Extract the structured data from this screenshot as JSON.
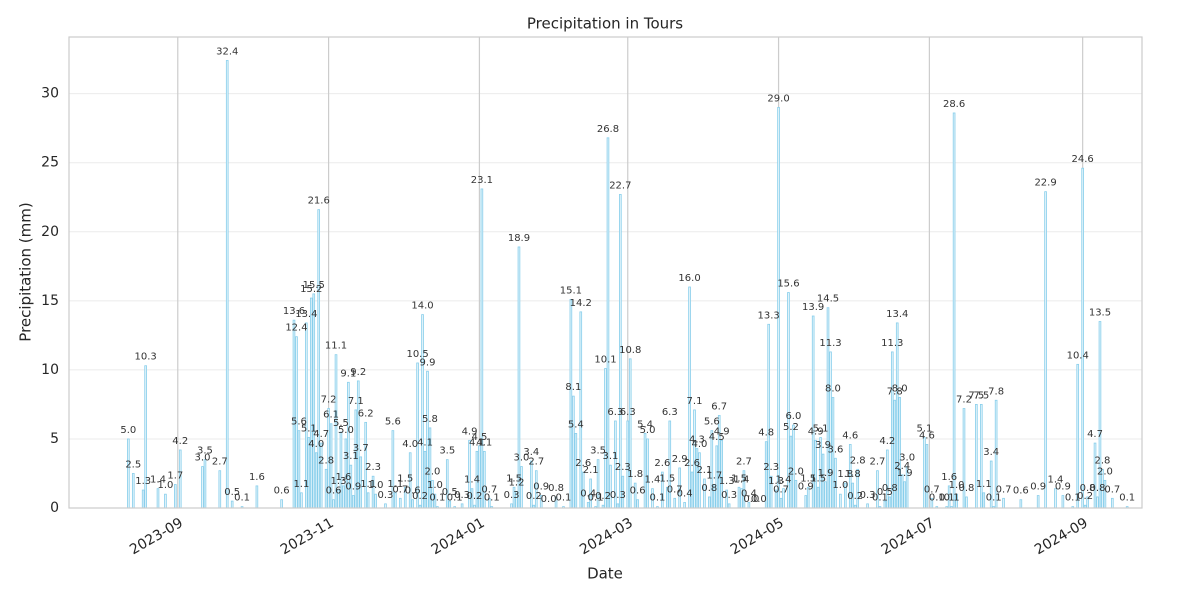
{
  "chart_data": {
    "type": "bar",
    "title": "Precipitation in Tours",
    "xlabel": "Date",
    "ylabel": "Precipitation (mm)",
    "color": "#87ceeb",
    "grid": true,
    "xlim": [
      "2023-07-19",
      "2024-09-25"
    ],
    "xticks": [
      {
        "value": "2023-09-01",
        "label": "2023-09"
      },
      {
        "value": "2023-11-01",
        "label": "2023-11"
      },
      {
        "value": "2024-01-01",
        "label": "2024-01"
      },
      {
        "value": "2024-03-01",
        "label": "2024-03"
      },
      {
        "value": "2024-05-01",
        "label": "2024-05"
      },
      {
        "value": "2024-07-01",
        "label": "2024-07"
      },
      {
        "value": "2024-09-01",
        "label": "2024-09"
      }
    ],
    "ylim": [
      0,
      34.1
    ],
    "yticks": [
      0,
      5,
      10,
      15,
      20,
      25,
      30
    ],
    "x": [
      "2023-08-12",
      "2023-08-14",
      "2023-08-18",
      "2023-08-19",
      "2023-08-24",
      "2023-08-27",
      "2023-08-31",
      "2023-09-02",
      "2023-09-11",
      "2023-09-12",
      "2023-09-18",
      "2023-09-21",
      "2023-09-23",
      "2023-09-27",
      "2023-10-03",
      "2023-10-13",
      "2023-10-18",
      "2023-10-19",
      "2023-10-20",
      "2023-10-21",
      "2023-10-23",
      "2023-10-24",
      "2023-10-25",
      "2023-10-26",
      "2023-10-27",
      "2023-10-28",
      "2023-10-29",
      "2023-10-31",
      "2023-11-01",
      "2023-11-02",
      "2023-11-03",
      "2023-11-04",
      "2023-11-05",
      "2023-11-06",
      "2023-11-07",
      "2023-11-08",
      "2023-11-09",
      "2023-11-10",
      "2023-11-11",
      "2023-11-12",
      "2023-11-13",
      "2023-11-14",
      "2023-11-16",
      "2023-11-17",
      "2023-11-19",
      "2023-11-20",
      "2023-11-24",
      "2023-11-27",
      "2023-11-28",
      "2023-11-30",
      "2023-12-02",
      "2023-12-04",
      "2023-12-05",
      "2023-12-07",
      "2023-12-08",
      "2023-12-09",
      "2023-12-10",
      "2023-12-11",
      "2023-12-12",
      "2023-12-13",
      "2023-12-14",
      "2023-12-15",
      "2023-12-19",
      "2023-12-20",
      "2023-12-22",
      "2023-12-25",
      "2023-12-28",
      "2023-12-29",
      "2023-12-30",
      "2023-12-31",
      "2024-01-01",
      "2024-01-02",
      "2024-01-03",
      "2024-01-05",
      "2024-01-06",
      "2024-01-14",
      "2024-01-15",
      "2024-01-16",
      "2024-01-17",
      "2024-01-18",
      "2024-01-22",
      "2024-01-23",
      "2024-01-24",
      "2024-01-26",
      "2024-01-29",
      "2024-02-01",
      "2024-02-04",
      "2024-02-07",
      "2024-02-08",
      "2024-02-09",
      "2024-02-11",
      "2024-02-12",
      "2024-02-14",
      "2024-02-15",
      "2024-02-17",
      "2024-02-18",
      "2024-02-20",
      "2024-02-21",
      "2024-02-22",
      "2024-02-23",
      "2024-02-25",
      "2024-02-26",
      "2024-02-27",
      "2024-02-28",
      "2024-03-01",
      "2024-03-02",
      "2024-03-04",
      "2024-03-05",
      "2024-03-08",
      "2024-03-09",
      "2024-03-11",
      "2024-03-13",
      "2024-03-15",
      "2024-03-17",
      "2024-03-18",
      "2024-03-20",
      "2024-03-22",
      "2024-03-24",
      "2024-03-26",
      "2024-03-27",
      "2024-03-28",
      "2024-03-29",
      "2024-03-30",
      "2024-04-01",
      "2024-04-03",
      "2024-04-04",
      "2024-04-05",
      "2024-04-06",
      "2024-04-07",
      "2024-04-08",
      "2024-04-10",
      "2024-04-11",
      "2024-04-15",
      "2024-04-16",
      "2024-04-17",
      "2024-04-19",
      "2024-04-20",
      "2024-04-23",
      "2024-04-26",
      "2024-04-27",
      "2024-04-28",
      "2024-04-30",
      "2024-05-01",
      "2024-05-02",
      "2024-05-03",
      "2024-05-05",
      "2024-05-06",
      "2024-05-07",
      "2024-05-08",
      "2024-05-12",
      "2024-05-13",
      "2024-05-15",
      "2024-05-16",
      "2024-05-17",
      "2024-05-18",
      "2024-05-19",
      "2024-05-20",
      "2024-05-21",
      "2024-05-22",
      "2024-05-23",
      "2024-05-24",
      "2024-05-26",
      "2024-05-28",
      "2024-05-30",
      "2024-05-31",
      "2024-06-01",
      "2024-06-02",
      "2024-06-06",
      "2024-06-10",
      "2024-06-11",
      "2024-06-13",
      "2024-06-14",
      "2024-06-15",
      "2024-06-16",
      "2024-06-17",
      "2024-06-18",
      "2024-06-19",
      "2024-06-20",
      "2024-06-21",
      "2024-06-22",
      "2024-06-29",
      "2024-06-30",
      "2024-07-02",
      "2024-07-04",
      "2024-07-08",
      "2024-07-09",
      "2024-07-10",
      "2024-07-11",
      "2024-07-12",
      "2024-07-15",
      "2024-07-16",
      "2024-07-20",
      "2024-07-22",
      "2024-07-23",
      "2024-07-26",
      "2024-07-27",
      "2024-07-28",
      "2024-07-31",
      "2024-08-07",
      "2024-08-14",
      "2024-08-17",
      "2024-08-21",
      "2024-08-24",
      "2024-08-28",
      "2024-08-30",
      "2024-09-01",
      "2024-09-02",
      "2024-09-03",
      "2024-09-06",
      "2024-09-07",
      "2024-09-08",
      "2024-09-09",
      "2024-09-10",
      "2024-09-13",
      "2024-09-19"
    ],
    "values": [
      5.0,
      2.5,
      1.3,
      10.3,
      1.4,
      1.0,
      1.7,
      4.2,
      3.0,
      3.5,
      2.7,
      32.4,
      0.5,
      0.1,
      1.6,
      0.6,
      13.6,
      12.4,
      5.6,
      1.1,
      13.4,
      5.1,
      15.2,
      15.5,
      4.0,
      21.6,
      4.7,
      2.8,
      7.2,
      6.1,
      0.6,
      11.1,
      1.3,
      5.5,
      1.6,
      5.0,
      9.1,
      3.1,
      0.9,
      7.1,
      9.2,
      3.7,
      6.2,
      1.1,
      2.3,
      1.0,
      0.3,
      5.6,
      1.1,
      0.7,
      1.5,
      4.0,
      0.6,
      10.5,
      0.2,
      14.0,
      4.1,
      9.9,
      5.8,
      2.0,
      1.0,
      0.1,
      3.5,
      0.5,
      0.1,
      0.3,
      4.9,
      1.4,
      0.2,
      4.1,
      4.5,
      23.1,
      4.1,
      0.7,
      0.1,
      0.3,
      1.5,
      1.2,
      18.9,
      3.0,
      3.4,
      0.2,
      2.7,
      0.9,
      0.0,
      0.8,
      0.1,
      15.1,
      8.1,
      5.4,
      14.2,
      2.6,
      0.4,
      2.1,
      0.1,
      3.5,
      0.2,
      10.1,
      26.8,
      3.1,
      6.3,
      0.3,
      22.7,
      2.3,
      6.3,
      10.8,
      1.8,
      0.6,
      5.4,
      5.0,
      1.4,
      0.1,
      2.6,
      1.5,
      6.3,
      0.7,
      2.9,
      0.4,
      16.0,
      2.6,
      7.1,
      4.3,
      4.0,
      2.1,
      0.8,
      5.6,
      1.7,
      4.5,
      6.7,
      4.9,
      1.3,
      0.3,
      1.5,
      1.4,
      2.7,
      0.4,
      0.0,
      0.0,
      4.8,
      13.3,
      2.3,
      1.3,
      29.0,
      0.7,
      1.4,
      15.6,
      5.2,
      6.0,
      2.0,
      0.9,
      1.5,
      13.9,
      4.9,
      1.5,
      5.1,
      3.9,
      1.9,
      14.5,
      11.3,
      8.0,
      3.6,
      1.0,
      1.8,
      4.6,
      1.8,
      0.2,
      2.8,
      0.3,
      2.7,
      0.1,
      0.5,
      4.2,
      0.8,
      11.3,
      7.8,
      13.4,
      8.0,
      2.4,
      1.9,
      3.0,
      5.1,
      4.6,
      0.7,
      0.1,
      0.1,
      1.6,
      0.1,
      28.6,
      1.0,
      7.2,
      0.8,
      7.5,
      7.5,
      1.1,
      3.4,
      0.1,
      7.8,
      0.7,
      0.6,
      0.9,
      22.9,
      1.4,
      0.9,
      0.1,
      10.4,
      24.6,
      0.2,
      0.8,
      4.7,
      0.8,
      13.5,
      2.8,
      2.0,
      0.7,
      0.1
    ],
    "value_labels": [
      "5.0",
      "2.5",
      "1.3",
      "10.3",
      "1.4",
      "1.0",
      "1.7",
      "4.2",
      "3.0",
      "3.5",
      "2.7",
      "32.4",
      "0.5",
      "0.1",
      "1.6",
      "0.6",
      "13.6",
      "12.4",
      "5.6",
      "1.1",
      "13.4",
      "5.1",
      "15.2",
      "15.5",
      "4.0",
      "21.6",
      "4.7",
      "2.8",
      "7.2",
      "6.1",
      "0.6",
      "11.1",
      "1.3",
      "5.5",
      "1.6",
      "5.0",
      "9.1",
      "3.1",
      "0.9",
      "7.1",
      "9.2",
      "3.7",
      "6.2",
      "1.1",
      "2.3",
      "1.0",
      "0.3",
      "5.6",
      "1.1",
      "0.7",
      "1.5",
      "4.0",
      "0.6",
      "10.5",
      "0.2",
      "14.0",
      "4.1",
      "9.9",
      "5.8",
      "2.0",
      "1.0",
      "0.1",
      "3.5",
      "0.5",
      "0.1",
      "0.3",
      "4.9",
      "1.4",
      "0.2",
      "4.1",
      "4.5",
      "23.1",
      "4.1",
      "0.7",
      "0.1",
      "0.3",
      "1.5",
      "1.2",
      "18.9",
      "3.0",
      "3.4",
      "0.2",
      "2.7",
      "0.9",
      "0.0",
      "0.8",
      "0.1",
      "15.1",
      "8.1",
      "5.4",
      "14.2",
      "2.6",
      "0.4",
      "2.1",
      "0.1",
      "3.5",
      "0.2",
      "10.1",
      "26.8",
      "3.1",
      "6.3",
      "0.3",
      "22.7",
      "2.3",
      "6.3",
      "10.8",
      "1.8",
      "0.6",
      "5.4",
      "5.0",
      "1.4",
      "0.1",
      "2.6",
      "1.5",
      "6.3",
      "0.7",
      "2.9",
      "0.4",
      "16.0",
      "2.6",
      "7.1",
      "4.3",
      "4.0",
      "2.1",
      "0.8",
      "5.6",
      "1.7",
      "4.5",
      "6.7",
      "4.9",
      "1.3",
      "0.3",
      "1.5",
      "1.4",
      "2.7",
      "0.4",
      "0.0",
      "0.0",
      "4.8",
      "13.3",
      "2.3",
      "1.3",
      "29.0",
      "0.7",
      "1.4",
      "15.6",
      "5.2",
      "6.0",
      "2.0",
      "0.9",
      "1.5",
      "13.9",
      "4.9",
      "1.5",
      "5.1",
      "3.9",
      "1.9",
      "14.5",
      "11.3",
      "8.0",
      "3.6",
      "1.0",
      "1.8",
      "4.6",
      "1.8",
      "0.2",
      "2.8",
      "0.3",
      "2.7",
      "0.1",
      "0.5",
      "4.2",
      "0.8",
      "11.3",
      "7.8",
      "13.4",
      "8.0",
      "2.4",
      "1.9",
      "3.0",
      "5.1",
      "4.6",
      "0.7",
      "0.1",
      "0.1",
      "1.6",
      "0.1",
      "28.6",
      "1.0",
      "7.2",
      "0.8",
      "7.5",
      "7.5",
      "1.1",
      "3.4",
      "0.1",
      "7.8",
      "0.7",
      "0.6",
      "0.9",
      "22.9",
      "1.4",
      "0.9",
      "0.1",
      "10.4",
      "24.6",
      "0.2",
      "0.8",
      "4.7",
      "0.8",
      "13.5",
      "2.8",
      "2.0",
      "0.7",
      "0.1"
    ]
  }
}
